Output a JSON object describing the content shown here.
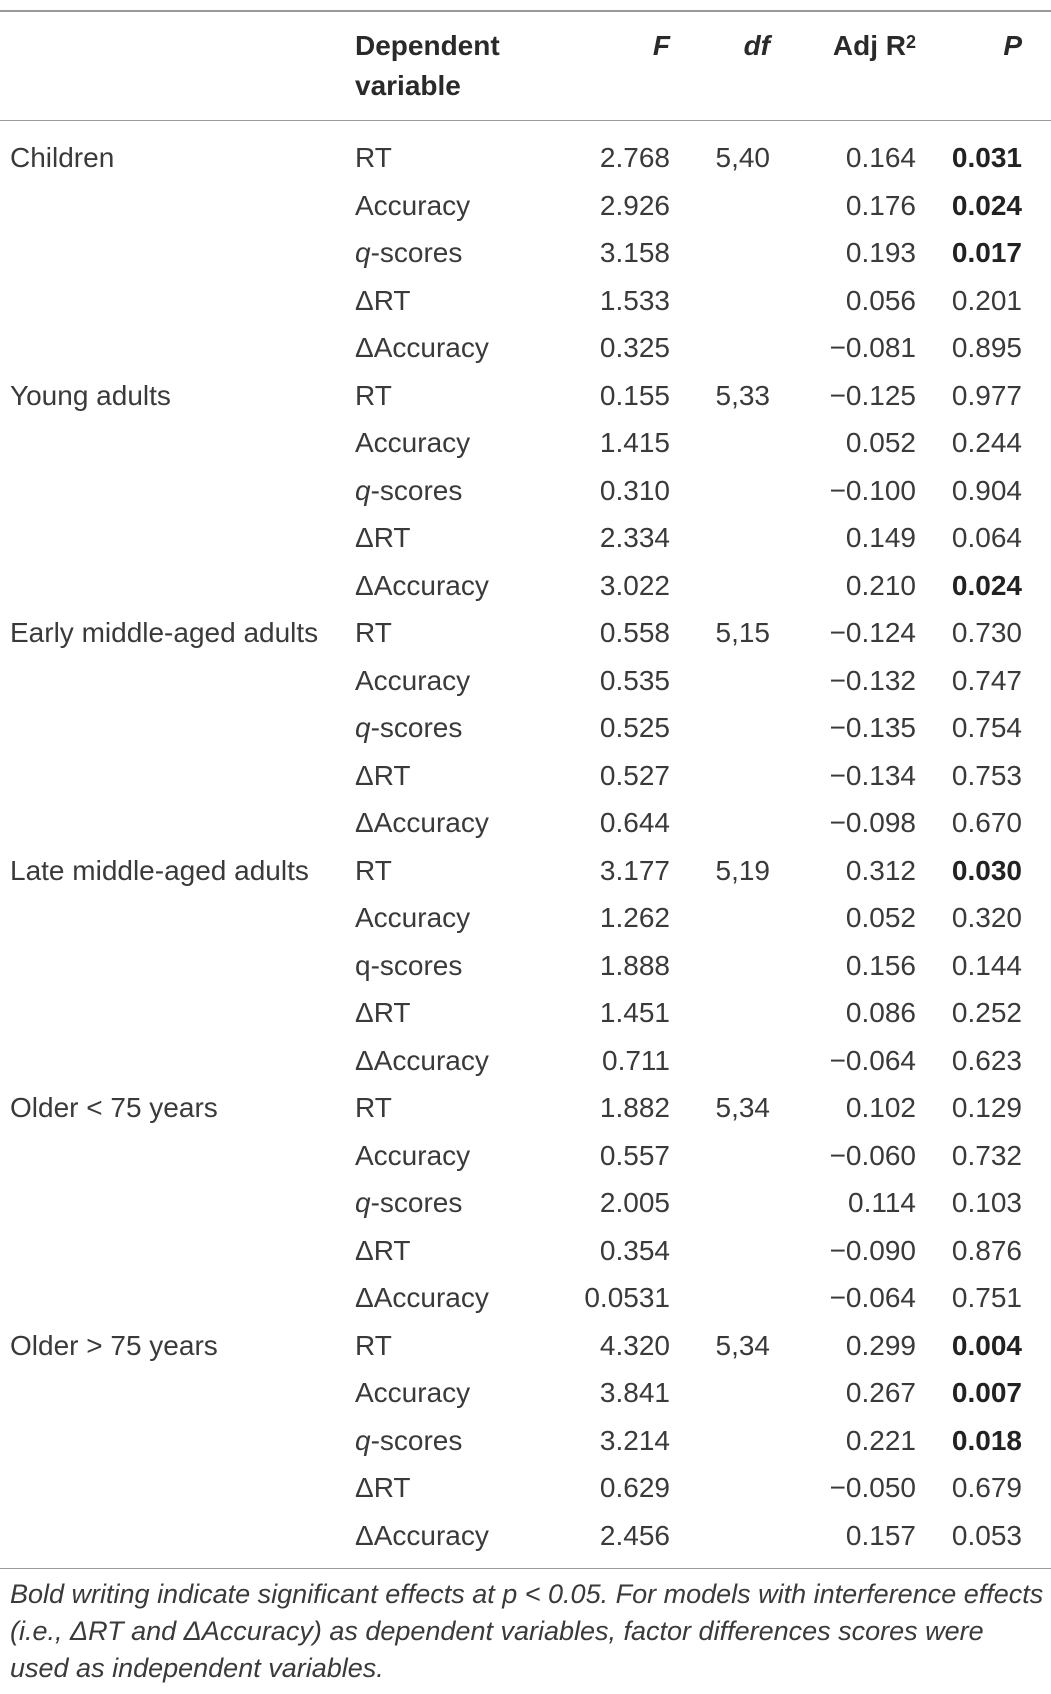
{
  "header": {
    "dependent_variable": "Dependent variable",
    "f": "F",
    "df": "df",
    "adj_r2": "Adj R",
    "adj_r2_sup": "2",
    "p": "P"
  },
  "rows": [
    {
      "group": "Children",
      "dep_prefix": "",
      "dep": "RT",
      "f": "2.768",
      "df": "5,40",
      "adj": "0.164",
      "p": "0.031",
      "sig": true
    },
    {
      "group": "",
      "dep_prefix": "",
      "dep": "Accuracy",
      "f": "2.926",
      "df": "",
      "adj": "0.176",
      "p": "0.024",
      "sig": true
    },
    {
      "group": "",
      "dep_prefix": "q",
      "dep": "-scores",
      "f": "3.158",
      "df": "",
      "adj": "0.193",
      "p": "0.017",
      "sig": true
    },
    {
      "group": "",
      "dep_prefix": "",
      "dep": "ΔRT",
      "f": "1.533",
      "df": "",
      "adj": "0.056",
      "p": "0.201",
      "sig": false
    },
    {
      "group": "",
      "dep_prefix": "",
      "dep": "ΔAccuracy",
      "f": "0.325",
      "df": "",
      "adj": "−0.081",
      "p": "0.895",
      "sig": false
    },
    {
      "group": "Young adults",
      "dep_prefix": "",
      "dep": "RT",
      "f": "0.155",
      "df": "5,33",
      "adj": "−0.125",
      "p": "0.977",
      "sig": false
    },
    {
      "group": "",
      "dep_prefix": "",
      "dep": "Accuracy",
      "f": "1.415",
      "df": "",
      "adj": "0.052",
      "p": "0.244",
      "sig": false
    },
    {
      "group": "",
      "dep_prefix": "q",
      "dep": "-scores",
      "f": "0.310",
      "df": "",
      "adj": "−0.100",
      "p": "0.904",
      "sig": false
    },
    {
      "group": "",
      "dep_prefix": "",
      "dep": "ΔRT",
      "f": "2.334",
      "df": "",
      "adj": "0.149",
      "p": "0.064",
      "sig": false
    },
    {
      "group": "",
      "dep_prefix": "",
      "dep": "ΔAccuracy",
      "f": "3.022",
      "df": "",
      "adj": "0.210",
      "p": "0.024",
      "sig": true
    },
    {
      "group": "Early middle-aged adults",
      "dep_prefix": "",
      "dep": "RT",
      "f": "0.558",
      "df": "5,15",
      "adj": "−0.124",
      "p": "0.730",
      "sig": false
    },
    {
      "group": "",
      "dep_prefix": "",
      "dep": "Accuracy",
      "f": "0.535",
      "df": "",
      "adj": "−0.132",
      "p": "0.747",
      "sig": false
    },
    {
      "group": "",
      "dep_prefix": "q",
      "dep": "-scores",
      "f": "0.525",
      "df": "",
      "adj": "−0.135",
      "p": "0.754",
      "sig": false
    },
    {
      "group": "",
      "dep_prefix": "",
      "dep": "ΔRT",
      "f": "0.527",
      "df": "",
      "adj": "−0.134",
      "p": "0.753",
      "sig": false
    },
    {
      "group": "",
      "dep_prefix": "",
      "dep": "ΔAccuracy",
      "f": "0.644",
      "df": "",
      "adj": "−0.098",
      "p": "0.670",
      "sig": false
    },
    {
      "group": "Late middle-aged adults",
      "dep_prefix": "",
      "dep": "RT",
      "f": "3.177",
      "df": "5,19",
      "adj": "0.312",
      "p": "0.030",
      "sig": true
    },
    {
      "group": "",
      "dep_prefix": "",
      "dep": "Accuracy",
      "f": "1.262",
      "df": "",
      "adj": "0.052",
      "p": "0.320",
      "sig": false
    },
    {
      "group": "",
      "dep_prefix": "",
      "dep": "q-scores",
      "f": "1.888",
      "df": "",
      "adj": "0.156",
      "p": "0.144",
      "sig": false
    },
    {
      "group": "",
      "dep_prefix": "",
      "dep": "ΔRT",
      "f": "1.451",
      "df": "",
      "adj": "0.086",
      "p": "0.252",
      "sig": false
    },
    {
      "group": "",
      "dep_prefix": "",
      "dep": "ΔAccuracy",
      "f": "0.711",
      "df": "",
      "adj": "−0.064",
      "p": "0.623",
      "sig": false
    },
    {
      "group": "Older < 75 years",
      "dep_prefix": "",
      "dep": "RT",
      "f": "1.882",
      "df": "5,34",
      "adj": "0.102",
      "p": "0.129",
      "sig": false
    },
    {
      "group": "",
      "dep_prefix": "",
      "dep": "Accuracy",
      "f": "0.557",
      "df": "",
      "adj": "−0.060",
      "p": "0.732",
      "sig": false
    },
    {
      "group": "",
      "dep_prefix": "q",
      "dep": "-scores",
      "f": "2.005",
      "df": "",
      "adj": "0.114",
      "p": "0.103",
      "sig": false
    },
    {
      "group": "",
      "dep_prefix": "",
      "dep": "ΔRT",
      "f": "0.354",
      "df": "",
      "adj": "−0.090",
      "p": "0.876",
      "sig": false
    },
    {
      "group": "",
      "dep_prefix": "",
      "dep": "ΔAccuracy",
      "f": "0.0531",
      "df": "",
      "adj": "−0.064",
      "p": "0.751",
      "sig": false
    },
    {
      "group": "Older > 75 years",
      "dep_prefix": "",
      "dep": "RT",
      "f": "4.320",
      "df": "5,34",
      "adj": "0.299",
      "p": "0.004",
      "sig": true
    },
    {
      "group": "",
      "dep_prefix": "",
      "dep": "Accuracy",
      "f": "3.841",
      "df": "",
      "adj": "0.267",
      "p": "0.007",
      "sig": true
    },
    {
      "group": "",
      "dep_prefix": "q",
      "dep": "-scores",
      "f": "3.214",
      "df": "",
      "adj": "0.221",
      "p": "0.018",
      "sig": true
    },
    {
      "group": "",
      "dep_prefix": "",
      "dep": "ΔRT",
      "f": "0.629",
      "df": "",
      "adj": "−0.050",
      "p": "0.679",
      "sig": false
    },
    {
      "group": "",
      "dep_prefix": "",
      "dep": "ΔAccuracy",
      "f": "2.456",
      "df": "",
      "adj": "0.157",
      "p": "0.053",
      "sig": false
    }
  ],
  "footnote": "Bold writing indicate significant effects at p < 0.05. For models with interference effects (i.e., ΔRT and ΔAccuracy) as dependent variables, factor differences scores were used as independent variables."
}
